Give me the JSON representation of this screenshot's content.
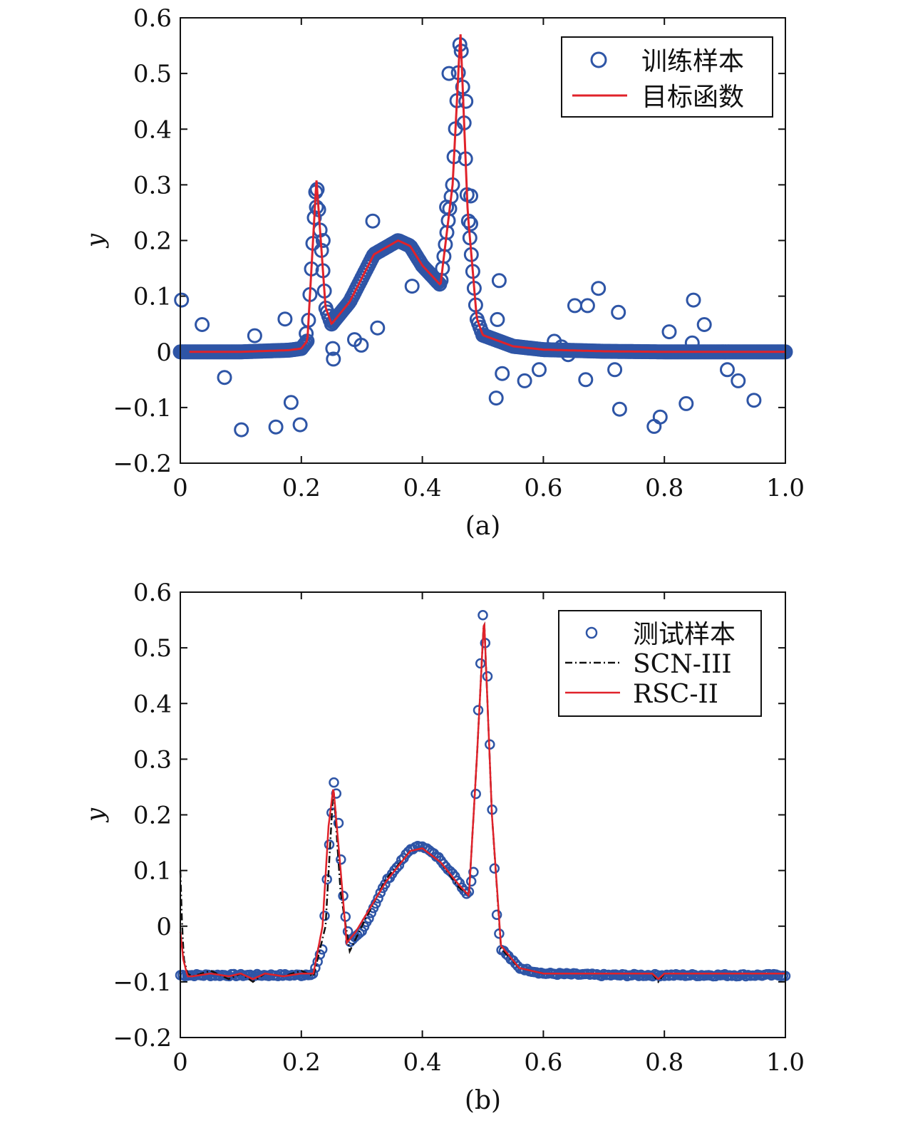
{
  "chart_data": [
    {
      "type": "scatter",
      "caption": "(a)",
      "xlabel": "",
      "ylabel": "y",
      "xlim": [
        0,
        1.0
      ],
      "ylim": [
        -0.2,
        0.6
      ],
      "xticks": [
        "0",
        "0.2",
        "0.4",
        "0.6",
        "0.8",
        "1.0"
      ],
      "yticks": [
        "−0.2",
        "−0.1",
        "0",
        "0.1",
        "0.2",
        "0.3",
        "0.4",
        "0.5",
        "0.6"
      ],
      "legend_position": "top-right",
      "colors": {
        "markers": "#2e55a6",
        "curve": "#e0222a"
      },
      "series": [
        {
          "name": "训练样本",
          "kind": "markers",
          "generated": "target curve sampled at 1000 points on [0,1] plus scattered outliers listed below",
          "outliers": [
            [
              0.002,
              0.093
            ],
            [
              0.036,
              0.049
            ],
            [
              0.073,
              -0.046
            ],
            [
              0.101,
              -0.14
            ],
            [
              0.123,
              0.029
            ],
            [
              0.158,
              -0.135
            ],
            [
              0.173,
              0.059
            ],
            [
              0.183,
              -0.091
            ],
            [
              0.198,
              -0.131
            ],
            [
              0.208,
              0.033
            ],
            [
              0.225,
              0.26
            ],
            [
              0.236,
              0.2
            ],
            [
              0.252,
              0.006
            ],
            [
              0.253,
              -0.013
            ],
            [
              0.288,
              0.022
            ],
            [
              0.299,
              0.012
            ],
            [
              0.318,
              0.235
            ],
            [
              0.326,
              0.043
            ],
            [
              0.383,
              0.118
            ],
            [
              0.44,
              0.26
            ],
            [
              0.444,
              0.5
            ],
            [
              0.472,
              0.45
            ],
            [
              0.48,
              0.28
            ],
            [
              0.48,
              0.23
            ],
            [
              0.524,
              0.058
            ],
            [
              0.527,
              0.128
            ],
            [
              0.532,
              -0.039
            ],
            [
              0.522,
              -0.083
            ],
            [
              0.569,
              -0.052
            ],
            [
              0.593,
              -0.032
            ],
            [
              0.618,
              0.019
            ],
            [
              0.63,
              0.009
            ],
            [
              0.641,
              -0.005
            ],
            [
              0.652,
              0.083
            ],
            [
              0.67,
              -0.05
            ],
            [
              0.673,
              0.083
            ],
            [
              0.691,
              0.114
            ],
            [
              0.718,
              -0.032
            ],
            [
              0.724,
              0.071
            ],
            [
              0.726,
              -0.103
            ],
            [
              0.783,
              -0.134
            ],
            [
              0.793,
              -0.117
            ],
            [
              0.808,
              0.036
            ],
            [
              0.836,
              -0.093
            ],
            [
              0.846,
              0.016
            ],
            [
              0.848,
              0.093
            ],
            [
              0.866,
              0.049
            ],
            [
              0.904,
              -0.032
            ],
            [
              0.922,
              -0.052
            ],
            [
              0.948,
              -0.087
            ]
          ]
        },
        {
          "name": "目标函数",
          "kind": "line",
          "x": [
            0,
            0.1,
            0.18,
            0.2,
            0.21,
            0.225,
            0.24,
            0.25,
            0.28,
            0.32,
            0.36,
            0.38,
            0.4,
            0.43,
            0.45,
            0.463,
            0.475,
            0.49,
            0.5,
            0.55,
            0.6,
            0.7,
            0.8,
            1.0
          ],
          "y": [
            0,
            0,
            0.003,
            0.006,
            0.02,
            0.31,
            0.08,
            0.05,
            0.09,
            0.175,
            0.2,
            0.19,
            0.155,
            0.12,
            0.3,
            0.575,
            0.25,
            0.06,
            0.03,
            0.01,
            0.004,
            0.001,
            0,
            0
          ]
        }
      ]
    },
    {
      "type": "scatter",
      "caption": "(b)",
      "xlabel": "",
      "ylabel": "y",
      "xlim": [
        0,
        1.0
      ],
      "ylim": [
        -0.2,
        0.6
      ],
      "xticks": [
        "0",
        "0.2",
        "0.4",
        "0.6",
        "0.8",
        "1.0"
      ],
      "yticks": [
        "−0.2",
        "−0.1",
        "0",
        "0.1",
        "0.2",
        "0.3",
        "0.4",
        "0.5",
        "0.6"
      ],
      "legend_position": "top-right",
      "colors": {
        "markers": "#2e55a6",
        "scn": "#111111",
        "rsc": "#e0222a"
      },
      "series": [
        {
          "name": "测试样本",
          "kind": "markers",
          "generated": "test function sampled at ~500 points on [0,1]",
          "x": [
            0,
            0.2,
            0.22,
            0.235,
            0.245,
            0.255,
            0.262,
            0.27,
            0.28,
            0.3,
            0.34,
            0.38,
            0.4,
            0.43,
            0.46,
            0.475,
            0.485,
            0.492,
            0.5,
            0.507,
            0.515,
            0.522,
            0.53,
            0.56,
            0.6,
            0.7,
            1.0
          ],
          "y": [
            -0.088,
            -0.088,
            -0.085,
            -0.04,
            0.13,
            0.275,
            0.18,
            0.04,
            -0.03,
            -0.01,
            0.08,
            0.138,
            0.145,
            0.12,
            0.08,
            0.055,
            0.1,
            0.38,
            0.56,
            0.47,
            0.22,
            0.03,
            -0.04,
            -0.075,
            -0.085,
            -0.088,
            -0.088
          ]
        },
        {
          "name": "SCN-III",
          "kind": "line",
          "x": [
            0,
            0.003,
            0.006,
            0.012,
            0.02,
            0.05,
            0.08,
            0.1,
            0.12,
            0.14,
            0.17,
            0.2,
            0.22,
            0.24,
            0.253,
            0.265,
            0.28,
            0.3,
            0.34,
            0.38,
            0.4,
            0.43,
            0.46,
            0.477,
            0.49,
            0.502,
            0.515,
            0.53,
            0.56,
            0.6,
            0.7,
            0.78,
            0.79,
            0.8,
            0.9,
            1.0
          ],
          "y": [
            0.1,
            0.0,
            -0.06,
            -0.085,
            -0.09,
            -0.08,
            -0.095,
            -0.085,
            -0.1,
            -0.085,
            -0.09,
            -0.08,
            -0.09,
            0.0,
            0.25,
            0.06,
            -0.045,
            0.0,
            0.085,
            0.135,
            0.14,
            0.115,
            0.07,
            0.055,
            0.3,
            0.555,
            0.2,
            -0.04,
            -0.075,
            -0.085,
            -0.085,
            -0.085,
            -0.1,
            -0.085,
            -0.085,
            -0.085
          ]
        },
        {
          "name": "RSC-II",
          "kind": "line",
          "x": [
            0,
            0.005,
            0.012,
            0.02,
            0.05,
            0.08,
            0.1,
            0.12,
            0.14,
            0.17,
            0.2,
            0.22,
            0.235,
            0.245,
            0.253,
            0.265,
            0.275,
            0.29,
            0.34,
            0.38,
            0.4,
            0.43,
            0.46,
            0.477,
            0.49,
            0.502,
            0.515,
            0.53,
            0.56,
            0.6,
            0.7,
            0.78,
            0.79,
            0.8,
            0.9,
            1.0
          ],
          "y": [
            -0.01,
            -0.06,
            -0.09,
            -0.09,
            -0.085,
            -0.09,
            -0.085,
            -0.095,
            -0.085,
            -0.09,
            -0.085,
            -0.085,
            0.0,
            0.18,
            0.25,
            0.1,
            -0.03,
            -0.01,
            0.08,
            0.135,
            0.14,
            0.115,
            0.075,
            0.055,
            0.3,
            0.555,
            0.2,
            -0.035,
            -0.075,
            -0.085,
            -0.085,
            -0.085,
            -0.095,
            -0.085,
            -0.085,
            -0.085
          ]
        }
      ]
    }
  ]
}
